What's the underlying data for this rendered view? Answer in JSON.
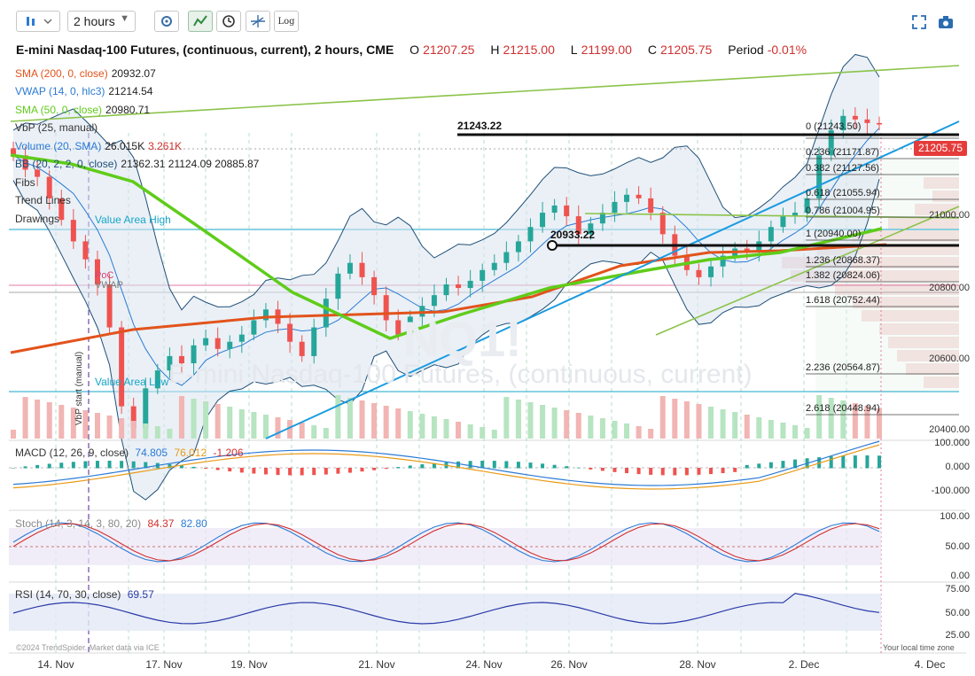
{
  "toolbar": {
    "chart_style_icon": "candles-icon",
    "interval": "2 hours",
    "log_label": "Log"
  },
  "header": {
    "symbol": "E-mini Nasdaq-100 Futures, (continuous, current), 2 hours, CME",
    "o_label": "O",
    "o_value": "21207.25",
    "h_label": "H",
    "h_value": "21215.00",
    "l_label": "L",
    "l_value": "21199.00",
    "c_label": "C",
    "c_value": "21205.75",
    "period_label": "Period",
    "period_value": "-0.01%"
  },
  "indicators": [
    {
      "label": "SMA (200, 0, close)",
      "value": "20932.07",
      "color": "#e2531c"
    },
    {
      "label": "VWAP (14, 0, hlc3)",
      "value": "21214.54",
      "color": "#2b7bd4"
    },
    {
      "label": "SMA (50, 0, close)",
      "value": "20980.71",
      "color": "#5fcc1a"
    },
    {
      "label": "VbP (25, manual)",
      "value": "",
      "color": "#333333"
    },
    {
      "label": "Volume (20, SMA)",
      "value": "26.015K",
      "value2": "3.261K",
      "color": "#2b7bd4"
    },
    {
      "label": "BB (20, 2, 2, 0, close)",
      "value": "21362.31  21124.09  20885.87",
      "color": "#1f4f77"
    },
    {
      "label": "Fibs",
      "value": "",
      "color": "#333333"
    },
    {
      "label": "Trend Lines",
      "value": "",
      "color": "#333333"
    },
    {
      "label": "Drawings",
      "value": "",
      "color": "#333333"
    }
  ],
  "annotations": {
    "level_high": "21243.22",
    "level_mid": "20933.22",
    "value_area_high": "Value Area High",
    "value_area_low": "Value Area Low",
    "poc": "PoC",
    "vwap_tag": "VWAP",
    "vbp_start": "VbP start (manual)",
    "watermark": "E-mini Nasdaq-100 Futures, (continuous, current)",
    "watermark_logo": "NQ1!",
    "current_price": "21205.75"
  },
  "fibs": [
    {
      "label": "0 (21243.50)"
    },
    {
      "label": "0.236 (21171.87)"
    },
    {
      "label": "0.382 (21127.56)"
    },
    {
      "label": "0.618 (21055.94)"
    },
    {
      "label": "0.786 (21004.95)"
    },
    {
      "label": "1 (20940.00)"
    },
    {
      "label": "1.236 (20868.37)"
    },
    {
      "label": "1.382 (20824.06)"
    },
    {
      "label": "1.618 (20752.44)"
    },
    {
      "label": "2.236 (20564.87)"
    },
    {
      "label": "2.618 (20448.94)"
    }
  ],
  "macd": {
    "label": "MACD (12, 26, 9, close)",
    "v1": "74.805",
    "v2": "76.012",
    "v3": "-1.206"
  },
  "stoch": {
    "label": "Stoch (14, 3, 14, 3, 80, 20)",
    "v1": "84.37",
    "v2": "82.80"
  },
  "rsi": {
    "label": "RSI (14, 70, 30, close)",
    "v1": "69.57"
  },
  "footer": {
    "credit": "©2024 TrendSpider. Market data via ICE",
    "local_time": "Your local time zone"
  },
  "colors": {
    "up": "#26a69a",
    "down": "#ef5350",
    "sma200": "#e2531c",
    "sma50": "#5fcc1a",
    "bb": "#1f4f77",
    "trend_blue": "#1a9be0",
    "trend_green": "#8bc34a",
    "macd_pos": "#26a69a",
    "macd_neg": "#ef5350"
  },
  "chart_data": {
    "type": "candlestick",
    "x_labels": [
      "14. Nov",
      "17. Nov",
      "19. Nov",
      "21. Nov",
      "24. Nov",
      "26. Nov",
      "28. Nov",
      "2. Dec",
      "4. Dec"
    ],
    "price_axis": {
      "ticks": [
        "21000.00",
        "20800.00",
        "20600.00",
        "20400.00"
      ],
      "ylim": [
        20330,
        21400
      ]
    },
    "closes": [
      21120,
      21080,
      21060,
      21000,
      20940,
      20880,
      20830,
      20760,
      20640,
      20420,
      20360,
      20470,
      20520,
      20560,
      20540,
      20590,
      20610,
      20580,
      20600,
      20620,
      20660,
      20690,
      20650,
      20600,
      20560,
      20640,
      20720,
      20790,
      20820,
      20780,
      20730,
      20660,
      20620,
      20670,
      20700,
      20730,
      20760,
      20750,
      20770,
      20800,
      20820,
      20850,
      20880,
      20920,
      20960,
      20980,
      20950,
      20900,
      20930,
      20960,
      20990,
      21010,
      21000,
      20960,
      20900,
      20840,
      20800,
      20780,
      20810,
      20840,
      20860,
      20850,
      20880,
      20920,
      20950,
      20960,
      21000,
      21120,
      21190,
      21230,
      21220,
      21210,
      21206
    ],
    "volume_axis": {
      "ticks": [],
      "note": "volume histogram bars"
    },
    "macd_axis": {
      "ticks": [
        "100.000",
        "0.000",
        "-100.000"
      ]
    },
    "stoch_axis": {
      "ticks": [
        "100.00",
        "50.00",
        "0.00"
      ]
    },
    "rsi_axis": {
      "ticks": [
        "75.00",
        "50.00",
        "25.00"
      ]
    }
  }
}
